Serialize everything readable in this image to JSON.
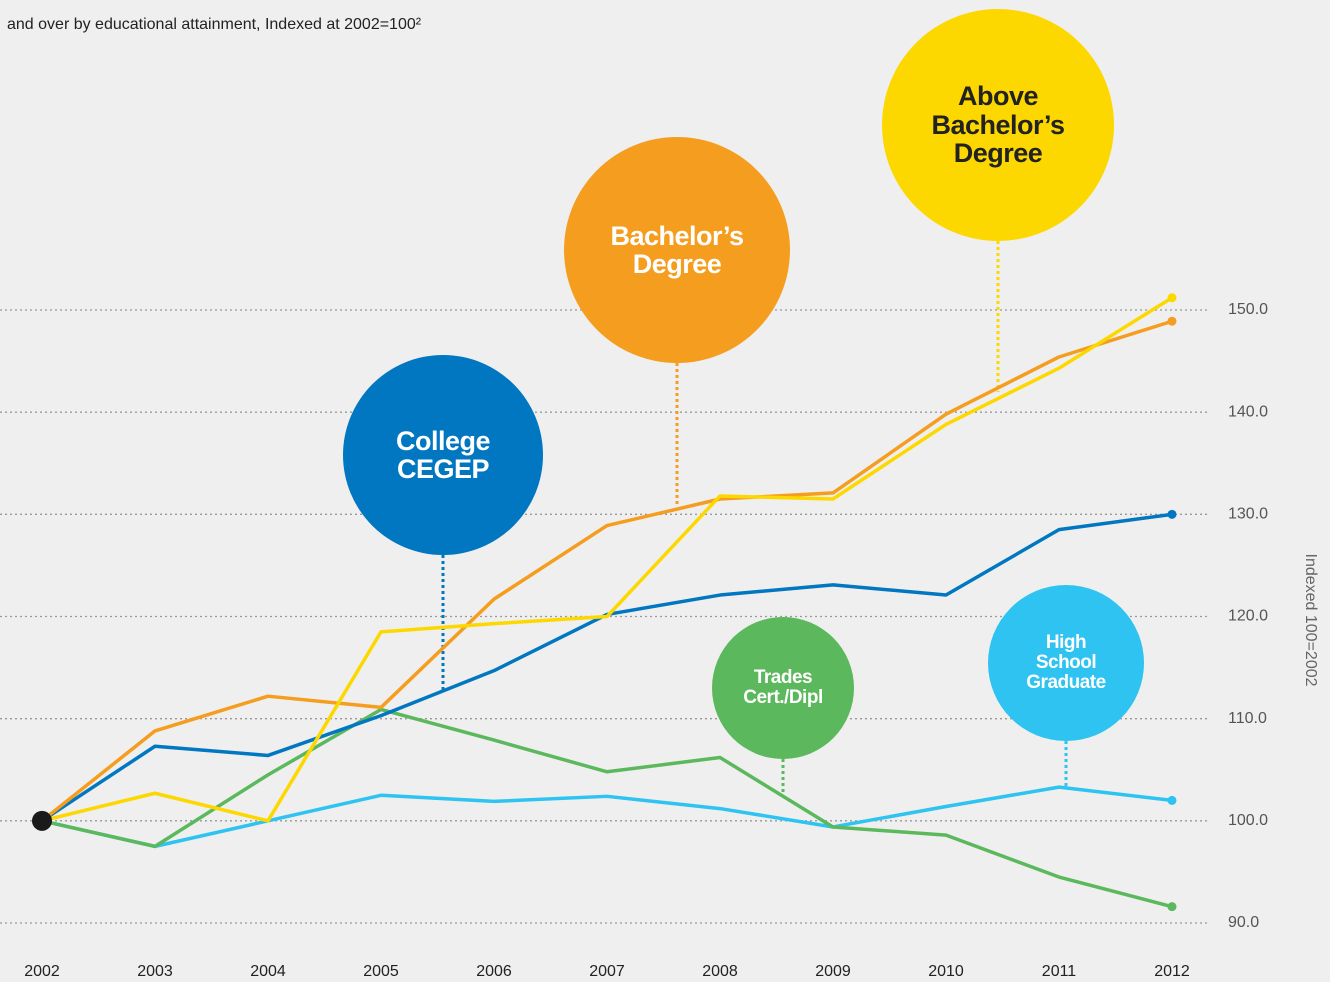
{
  "chart_data": {
    "type": "line",
    "subtitle": "and over by educational attainment, Indexed at 2002=100²",
    "y_axis_label": "Indexed 100=2002",
    "categories": [
      "2002",
      "2003",
      "2004",
      "2005",
      "2006",
      "2007",
      "2008",
      "2009",
      "2010",
      "2011",
      "2012"
    ],
    "series": [
      {
        "name": "College CEGEP",
        "color": "#0077c0",
        "values": [
          100,
          107.3,
          106.4,
          110.3,
          114.7,
          120.2,
          122.1,
          123.1,
          122.1,
          128.5,
          130.0
        ]
      },
      {
        "name": "Bachelor’s Degree",
        "color": "#f59d1e",
        "values": [
          100,
          108.8,
          112.2,
          111.1,
          121.7,
          128.9,
          131.5,
          132.1,
          139.8,
          145.4,
          148.9
        ]
      },
      {
        "name": "Above Bachelor’s Degree",
        "color": "#fdd800",
        "values": [
          100,
          102.7,
          100,
          118.5,
          119.3,
          120,
          131.8,
          131.5,
          138.8,
          144.3,
          151.2
        ]
      },
      {
        "name": "Trades Cert./Dipl",
        "color": "#5cb85c",
        "values": [
          100,
          97.5,
          104.5,
          110.9,
          107.9,
          104.8,
          106.2,
          99.4,
          98.6,
          94.5,
          91.6
        ]
      },
      {
        "name": "High School Graduate",
        "color": "#2ec3f0",
        "values": [
          100,
          97.5,
          100,
          102.5,
          101.9,
          102.4,
          101.2,
          99.4,
          101.4,
          103.3,
          102.0
        ]
      }
    ],
    "ylim": [
      90,
      150
    ],
    "yticks": [
      {
        "value": 90,
        "label": "90.0"
      },
      {
        "value": 100,
        "label": "100.0"
      },
      {
        "value": 110,
        "label": "110.0"
      },
      {
        "value": 120,
        "label": "120.0"
      },
      {
        "value": 130,
        "label": "130.0"
      },
      {
        "value": 140,
        "label": "140.0"
      },
      {
        "value": 150,
        "label": "150.0"
      }
    ],
    "grid": true
  }
}
